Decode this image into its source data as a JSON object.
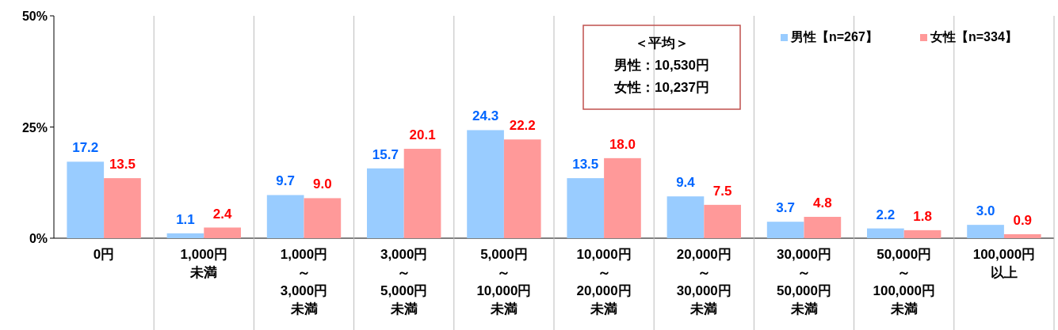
{
  "chart_data": {
    "type": "bar",
    "categories": [
      "0円",
      "1,000円未満",
      "1,000円～3,000円未満",
      "3,000円～5,000円未満",
      "5,000円～10,000円未満",
      "10,000円～20,000円未満",
      "20,000円～30,000円未満",
      "30,000円～50,000円未満",
      "50,000円～100,000円未満",
      "100,000円以上"
    ],
    "series": [
      {
        "name": "男性【n=267】",
        "color": "#99ccff",
        "values": [
          17.2,
          1.1,
          9.7,
          15.7,
          24.3,
          13.5,
          9.4,
          3.7,
          2.2,
          3.0
        ],
        "value_labels": [
          "17.2",
          "1.1",
          "9.7",
          "15.7",
          "24.3",
          "13.5",
          "9.4",
          "3.7",
          "2.2",
          "3.0"
        ]
      },
      {
        "name": "女性【n=334】",
        "color": "#ff9999",
        "values": [
          13.5,
          2.4,
          9.0,
          20.1,
          22.2,
          18.0,
          7.5,
          4.8,
          1.8,
          0.9
        ],
        "value_labels": [
          "13.5",
          "2.4",
          "9.0",
          "20.1",
          "22.2",
          "18.0",
          "7.5",
          "4.8",
          "1.8",
          "0.9"
        ]
      }
    ],
    "ylim": [
      0,
      50
    ],
    "yticks": [
      {
        "value": 0,
        "label": "0%"
      },
      {
        "value": 25,
        "label": "25%"
      },
      {
        "value": 50,
        "label": "50%"
      }
    ],
    "legend": "top right",
    "grid": false,
    "annotations": [
      "＜平均＞男性：10,530円女性：10,237円"
    ]
  }
}
